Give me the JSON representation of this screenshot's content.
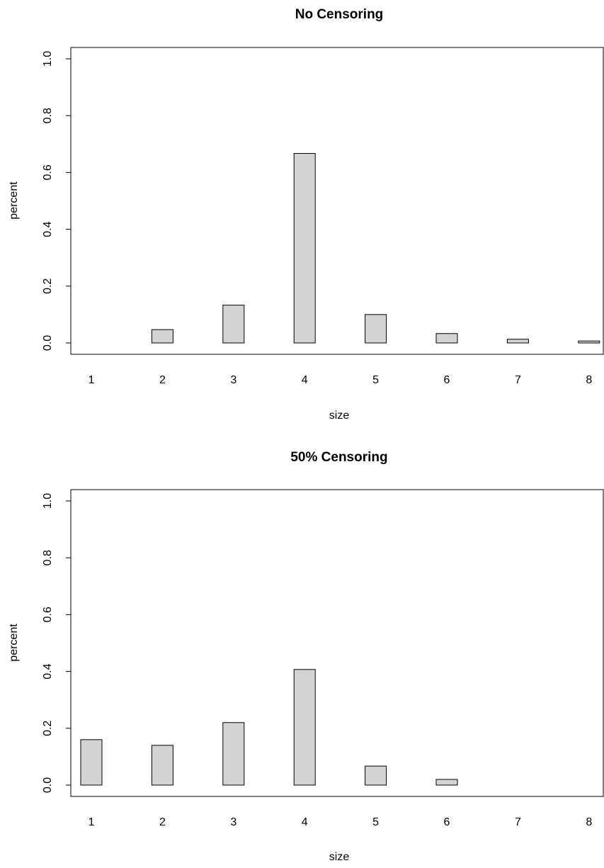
{
  "chart_data": [
    {
      "type": "bar",
      "title": "No Censoring",
      "xlabel": "size",
      "ylabel": "percent",
      "categories": [
        "1",
        "2",
        "3",
        "4",
        "5",
        "6",
        "7",
        "8"
      ],
      "values": [
        0,
        0.047,
        0.133,
        0.667,
        0.1,
        0.033,
        0.013,
        0.007
      ],
      "ylim": [
        0,
        1.0
      ],
      "yticks": [
        "0.0",
        "0.2",
        "0.4",
        "0.6",
        "0.8",
        "1.0"
      ],
      "bar_fill": "#d3d3d3",
      "bar_stroke": "#000000",
      "grid": false
    },
    {
      "type": "bar",
      "title": "50% Censoring",
      "xlabel": "size",
      "ylabel": "percent",
      "categories": [
        "1",
        "2",
        "3",
        "4",
        "5",
        "6",
        "7",
        "8"
      ],
      "values": [
        0.16,
        0.14,
        0.22,
        0.407,
        0.067,
        0.02,
        0,
        0
      ],
      "ylim": [
        0,
        1.0
      ],
      "yticks": [
        "0.0",
        "0.2",
        "0.4",
        "0.6",
        "0.8",
        "1.0"
      ],
      "bar_fill": "#d3d3d3",
      "bar_stroke": "#000000",
      "grid": false
    }
  ]
}
